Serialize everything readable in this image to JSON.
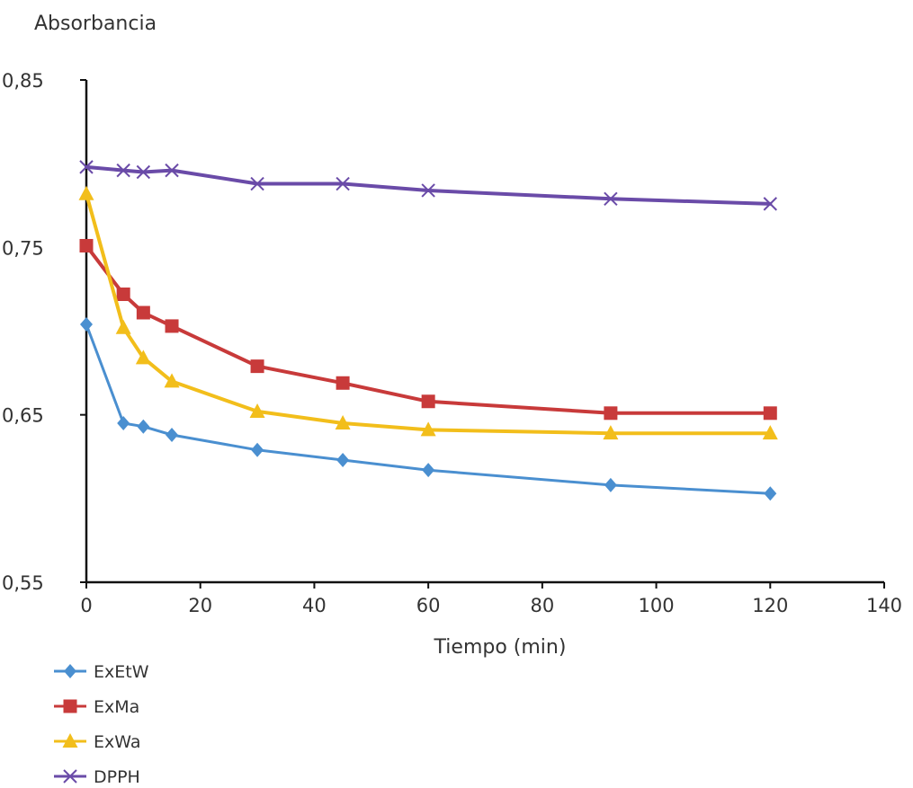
{
  "chart_data": {
    "type": "line",
    "ylabel": "Absorbancia",
    "xlabel": "Tiempo (min)",
    "xlim": [
      0,
      140
    ],
    "ylim": [
      0.55,
      0.85
    ],
    "xticks": [
      "0",
      "20",
      "40",
      "60",
      "80",
      "100",
      "120",
      "140"
    ],
    "xtick_values": [
      0,
      20,
      40,
      60,
      80,
      100,
      120,
      140
    ],
    "yticks": [
      "0,55",
      "0,65",
      "0,75",
      "0,85"
    ],
    "ytick_values": [
      0.55,
      0.65,
      0.75,
      0.85
    ],
    "grid": false,
    "legend_position": "bottom-left",
    "series": [
      {
        "name": "ExEtW",
        "color": "#4A8FD0",
        "marker": "diamond",
        "x": [
          0,
          6.5,
          10,
          15,
          30,
          45,
          60,
          92,
          120
        ],
        "y": [
          0.704,
          0.645,
          0.643,
          0.638,
          0.629,
          0.623,
          0.617,
          0.608,
          0.603
        ]
      },
      {
        "name": "ExMa",
        "color": "#C83A3A",
        "marker": "square",
        "x": [
          0,
          6.5,
          10,
          15,
          30,
          45,
          60,
          92,
          120
        ],
        "y": [
          0.751,
          0.722,
          0.711,
          0.703,
          0.679,
          0.669,
          0.658,
          0.651,
          0.651
        ]
      },
      {
        "name": "ExWa",
        "color": "#F2BE1B",
        "marker": "triangle",
        "x": [
          0,
          6.5,
          10,
          15,
          30,
          45,
          60,
          92,
          120
        ],
        "y": [
          0.782,
          0.702,
          0.684,
          0.67,
          0.652,
          0.645,
          0.641,
          0.639,
          0.639
        ]
      },
      {
        "name": "DPPH",
        "color": "#6A4BA8",
        "marker": "x",
        "x": [
          0,
          6.5,
          10,
          15,
          30,
          45,
          60,
          92,
          120
        ],
        "y": [
          0.798,
          0.796,
          0.795,
          0.796,
          0.788,
          0.788,
          0.784,
          0.779,
          0.776
        ]
      }
    ]
  }
}
